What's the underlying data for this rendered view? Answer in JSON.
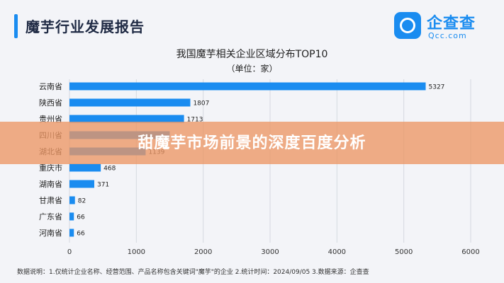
{
  "header": {
    "title": "魔芋行业发展报告"
  },
  "logo": {
    "name": "企查查",
    "domain": "Qcc.com"
  },
  "chart_data": {
    "type": "bar",
    "orientation": "horizontal",
    "title": "我国魔芋相关企业区域分布TOP10",
    "subtitle": "（单位：家）",
    "categories": [
      "云南省",
      "陕西省",
      "贵州省",
      "四川省",
      "湖北省",
      "重庆市",
      "湖南省",
      "甘肃省",
      "广东省",
      "河南省"
    ],
    "values": [
      5327,
      1807,
      1713,
      1500,
      1139,
      468,
      371,
      82,
      66,
      66
    ],
    "value_labels": [
      "5327",
      "1807",
      "1713",
      "",
      "1139",
      "468",
      "371",
      "82",
      "66",
      "66"
    ],
    "xlim": [
      0,
      6000
    ],
    "xticks": [
      0,
      1000,
      2000,
      3000,
      4000,
      5000,
      6000
    ],
    "grid": true,
    "bar_color": "#1a8cf0"
  },
  "banner": {
    "text": "甜魔芋市场前景的深度百度分析"
  },
  "footer": {
    "text": "数据说明：1.仅统计企业名称、经营范围、产品名称包含关键词\"魔芋\"的企业 2.统计时间：2024/09/05 3.数据来源：企查查"
  }
}
